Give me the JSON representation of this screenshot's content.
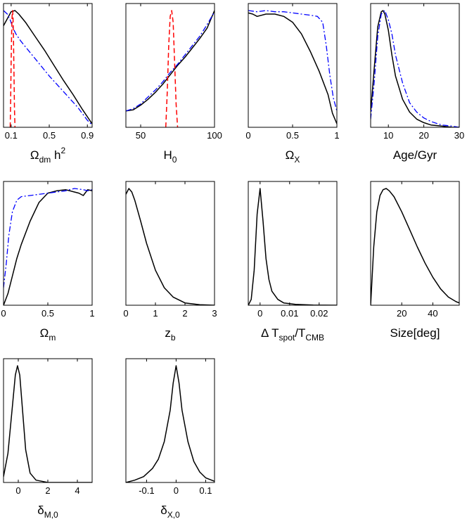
{
  "colors": {
    "solid": "#000000",
    "dashed": "#ff0000",
    "dashdot": "#0000ff"
  },
  "chart_data": [
    {
      "type": "line",
      "xlim": [
        0.02,
        0.95
      ],
      "xticks": [
        0.1,
        0.5,
        0.9
      ],
      "xticklabels": [
        "0.1",
        "0.5",
        "0.9"
      ],
      "xlabel": {
        "parts": [
          {
            "t": "Ω"
          },
          {
            "t": "dm",
            "s": "sub"
          },
          {
            "t": " h"
          },
          {
            "t": "2",
            "s": "sup"
          }
        ]
      },
      "series": [
        {
          "name": "solid",
          "style": "solid",
          "x": [
            0.02,
            0.06,
            0.1,
            0.14,
            0.18,
            0.25,
            0.35,
            0.45,
            0.55,
            0.65,
            0.75,
            0.85,
            0.95
          ],
          "y": [
            0.87,
            0.93,
            0.99,
            1.0,
            0.97,
            0.9,
            0.78,
            0.66,
            0.53,
            0.4,
            0.28,
            0.15,
            0.03
          ]
        },
        {
          "name": "dashdot",
          "style": "dashdot",
          "x": [
            0.02,
            0.06,
            0.09,
            0.12,
            0.15,
            0.2,
            0.3,
            0.4,
            0.5,
            0.6,
            0.7,
            0.8,
            0.9,
            0.95
          ],
          "y": [
            1.0,
            0.97,
            0.92,
            0.85,
            0.8,
            0.74,
            0.64,
            0.54,
            0.44,
            0.35,
            0.26,
            0.17,
            0.06,
            0.02
          ]
        },
        {
          "name": "dashed",
          "style": "dashed",
          "x": [
            0.09,
            0.095,
            0.1,
            0.105,
            0.11,
            0.115,
            0.12,
            0.125,
            0.13,
            0.135,
            0.14
          ],
          "y": [
            0.0,
            0.25,
            0.55,
            0.8,
            0.95,
            1.0,
            0.95,
            0.75,
            0.45,
            0.15,
            0.0
          ]
        }
      ]
    },
    {
      "type": "line",
      "xlim": [
        40,
        100
      ],
      "xticks": [
        50,
        100
      ],
      "xticklabels": [
        "50",
        "100"
      ],
      "xlabel": {
        "parts": [
          {
            "t": "H"
          },
          {
            "t": "0",
            "s": "sub"
          }
        ]
      },
      "series": [
        {
          "name": "solid",
          "style": "solid",
          "x": [
            40,
            45,
            50,
            55,
            60,
            65,
            70,
            75,
            80,
            85,
            90,
            95,
            100
          ],
          "y": [
            0.14,
            0.15,
            0.19,
            0.24,
            0.3,
            0.37,
            0.45,
            0.53,
            0.6,
            0.68,
            0.76,
            0.85,
            1.0
          ]
        },
        {
          "name": "dashdot",
          "style": "dashdot",
          "x": [
            40,
            45,
            50,
            55,
            60,
            65,
            70,
            75,
            80,
            85,
            90,
            95,
            100
          ],
          "y": [
            0.14,
            0.16,
            0.2,
            0.26,
            0.32,
            0.39,
            0.47,
            0.54,
            0.62,
            0.7,
            0.78,
            0.88,
            0.99
          ]
        },
        {
          "name": "dashed",
          "style": "dashed",
          "x": [
            67,
            68,
            69,
            70,
            71,
            72,
            73,
            74,
            75
          ],
          "y": [
            0.0,
            0.3,
            0.7,
            0.95,
            1.0,
            0.9,
            0.55,
            0.2,
            0.0
          ]
        }
      ]
    },
    {
      "type": "line",
      "xlim": [
        0,
        1
      ],
      "xticks": [
        0,
        0.5,
        1
      ],
      "xticklabels": [
        "0",
        "0.5",
        "1"
      ],
      "xlabel": {
        "parts": [
          {
            "t": "Ω"
          },
          {
            "t": "X",
            "s": "sub"
          }
        ]
      },
      "series": [
        {
          "name": "solid",
          "style": "solid",
          "x": [
            0,
            0.05,
            0.1,
            0.2,
            0.3,
            0.4,
            0.5,
            0.6,
            0.7,
            0.8,
            0.9,
            0.95,
            1.0
          ],
          "y": [
            0.98,
            0.97,
            0.95,
            0.97,
            0.97,
            0.95,
            0.9,
            0.8,
            0.65,
            0.48,
            0.28,
            0.12,
            0.03
          ]
        },
        {
          "name": "dashdot",
          "style": "dashdot",
          "x": [
            0,
            0.1,
            0.2,
            0.3,
            0.4,
            0.5,
            0.6,
            0.7,
            0.78,
            0.84,
            0.88,
            0.92,
            0.96,
            1.0
          ],
          "y": [
            1.0,
            0.99,
            1.0,
            0.99,
            0.99,
            0.98,
            0.97,
            0.96,
            0.95,
            0.9,
            0.7,
            0.45,
            0.25,
            0.14
          ]
        }
      ]
    },
    {
      "type": "line",
      "xlim": [
        5,
        30
      ],
      "xticks": [
        10,
        20,
        30
      ],
      "xticklabels": [
        "10",
        "20",
        "30"
      ],
      "xlabel": {
        "parts": [
          {
            "t": "Age/Gyr"
          }
        ]
      },
      "series": [
        {
          "name": "solid",
          "style": "solid",
          "x": [
            5,
            6,
            7,
            8,
            8.5,
            9,
            10,
            11,
            12,
            14,
            16,
            18,
            20,
            22,
            25,
            28,
            30
          ],
          "y": [
            0.13,
            0.5,
            0.86,
            0.99,
            1.0,
            0.97,
            0.83,
            0.62,
            0.44,
            0.24,
            0.13,
            0.07,
            0.04,
            0.02,
            0.01,
            0.0,
            0.0
          ]
        },
        {
          "name": "dashdot",
          "style": "dashdot",
          "x": [
            5,
            6,
            7,
            8,
            9,
            10,
            11,
            12,
            14,
            16,
            18,
            20,
            22,
            25,
            28,
            30
          ],
          "y": [
            0.07,
            0.38,
            0.78,
            0.97,
            1.0,
            0.92,
            0.8,
            0.62,
            0.38,
            0.21,
            0.13,
            0.08,
            0.05,
            0.02,
            0.01,
            0.0
          ]
        }
      ]
    },
    {
      "type": "line",
      "xlim": [
        0,
        1
      ],
      "xticks": [
        0,
        0.5,
        1
      ],
      "xticklabels": [
        "0",
        "0.5",
        "1"
      ],
      "xlabel": {
        "parts": [
          {
            "t": "Ω"
          },
          {
            "t": "m",
            "s": "sub"
          }
        ]
      },
      "series": [
        {
          "name": "solid",
          "style": "solid",
          "x": [
            0,
            0.05,
            0.1,
            0.15,
            0.2,
            0.3,
            0.4,
            0.5,
            0.6,
            0.7,
            0.8,
            0.85,
            0.9,
            0.95,
            1.0
          ],
          "y": [
            0.0,
            0.1,
            0.25,
            0.4,
            0.52,
            0.72,
            0.88,
            0.96,
            0.98,
            0.99,
            0.97,
            0.96,
            0.94,
            0.99,
            0.98
          ]
        },
        {
          "name": "dashdot",
          "style": "dashdot",
          "x": [
            0,
            0.03,
            0.06,
            0.1,
            0.15,
            0.2,
            0.3,
            0.4,
            0.5,
            0.6,
            0.7,
            0.8,
            0.9,
            0.95,
            1.0
          ],
          "y": [
            0.15,
            0.35,
            0.6,
            0.8,
            0.9,
            0.93,
            0.94,
            0.95,
            0.96,
            0.97,
            0.98,
            1.0,
            0.99,
            0.98,
            0.99
          ]
        }
      ]
    },
    {
      "type": "line",
      "xlim": [
        0,
        3
      ],
      "xticks": [
        0,
        1,
        2,
        3
      ],
      "xticklabels": [
        "0",
        "1",
        "2",
        "3"
      ],
      "xlabel": {
        "parts": [
          {
            "t": "z"
          },
          {
            "t": "b",
            "s": "sub"
          }
        ]
      },
      "series": [
        {
          "name": "solid",
          "style": "solid",
          "x": [
            0,
            0.1,
            0.2,
            0.3,
            0.5,
            0.7,
            1.0,
            1.3,
            1.6,
            2.0,
            2.5,
            3.0
          ],
          "y": [
            0.95,
            1.0,
            0.97,
            0.9,
            0.72,
            0.53,
            0.3,
            0.15,
            0.07,
            0.02,
            0.005,
            0.0
          ]
        }
      ]
    },
    {
      "type": "line",
      "xlim": [
        -0.004,
        0.026
      ],
      "xticks": [
        0,
        0.01,
        0.02
      ],
      "xticklabels": [
        "0",
        "0.01",
        "0.02"
      ],
      "xlabel": {
        "parts": [
          {
            "t": "Δ T"
          },
          {
            "t": "spot",
            "s": "sub"
          },
          {
            "t": "/T"
          },
          {
            "t": "CMB",
            "s": "sub"
          }
        ]
      },
      "series": [
        {
          "name": "solid",
          "style": "solid",
          "x": [
            -0.004,
            -0.003,
            -0.002,
            -0.001,
            0,
            0.001,
            0.002,
            0.003,
            0.004,
            0.006,
            0.008,
            0.012,
            0.018,
            0.026
          ],
          "y": [
            0.0,
            0.05,
            0.3,
            0.78,
            1.0,
            0.72,
            0.4,
            0.22,
            0.12,
            0.05,
            0.02,
            0.008,
            0.002,
            0.0
          ]
        }
      ]
    },
    {
      "type": "line",
      "xlim": [
        0,
        57
      ],
      "xticks": [
        20,
        40
      ],
      "xticklabels": [
        "20",
        "40"
      ],
      "xlabel": {
        "parts": [
          {
            "t": "Size[deg]"
          }
        ]
      },
      "series": [
        {
          "name": "solid",
          "style": "solid",
          "x": [
            0,
            2,
            4,
            6,
            8,
            10,
            12,
            15,
            20,
            25,
            30,
            35,
            40,
            45,
            50,
            55,
            57
          ],
          "y": [
            0.0,
            0.5,
            0.8,
            0.94,
            0.99,
            1.0,
            0.98,
            0.93,
            0.8,
            0.65,
            0.5,
            0.36,
            0.24,
            0.14,
            0.07,
            0.03,
            0.02
          ]
        }
      ]
    },
    {
      "type": "line",
      "xlim": [
        -1,
        5
      ],
      "xticks": [
        0,
        2,
        4
      ],
      "xticklabels": [
        "0",
        "2",
        "4"
      ],
      "xlabel": {
        "parts": [
          {
            "t": "δ"
          },
          {
            "t": "M,0",
            "s": "sub"
          }
        ]
      },
      "series": [
        {
          "name": "solid",
          "style": "solid",
          "x": [
            -1,
            -0.7,
            -0.4,
            -0.2,
            -0.05,
            0.1,
            0.3,
            0.5,
            0.8,
            1.2,
            1.6,
            2.0,
            3.0,
            4.0,
            5.0
          ],
          "y": [
            0.05,
            0.25,
            0.65,
            0.92,
            1.0,
            0.92,
            0.6,
            0.28,
            0.08,
            0.02,
            0.01,
            0.0,
            0.0,
            0.0,
            0.0
          ]
        }
      ]
    },
    {
      "type": "line",
      "xlim": [
        -0.17,
        0.13
      ],
      "xticks": [
        -0.1,
        0,
        0.1
      ],
      "xticklabels": [
        "-0.1",
        "0",
        "0.1"
      ],
      "xlabel": {
        "parts": [
          {
            "t": "δ"
          },
          {
            "t": "X,0",
            "s": "sub"
          }
        ]
      },
      "series": [
        {
          "name": "solid",
          "style": "solid",
          "x": [
            -0.17,
            -0.14,
            -0.11,
            -0.08,
            -0.06,
            -0.04,
            -0.02,
            -0.01,
            0,
            0.01,
            0.02,
            0.04,
            0.06,
            0.08,
            0.1,
            0.13
          ],
          "y": [
            0.0,
            0.02,
            0.05,
            0.12,
            0.2,
            0.35,
            0.62,
            0.85,
            1.0,
            0.85,
            0.62,
            0.35,
            0.18,
            0.09,
            0.04,
            0.01
          ]
        }
      ]
    }
  ]
}
